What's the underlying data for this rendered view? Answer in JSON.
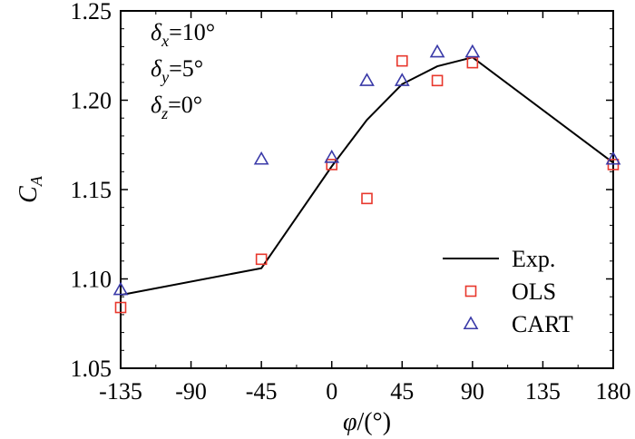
{
  "chart_data": {
    "type": "scatter",
    "xlabel_symbol": "φ",
    "xlabel_unit": "/(°)",
    "ylabel_main": "C",
    "ylabel_sub": "A",
    "xlim": [
      -135,
      180
    ],
    "ylim": [
      1.05,
      1.25
    ],
    "x_ticks": [
      -135,
      -90,
      -45,
      0,
      45,
      90,
      135,
      180
    ],
    "x_tick_labels": [
      "-135",
      "-90",
      "-45",
      "0",
      "45",
      "90",
      "135",
      "180"
    ],
    "y_ticks": [
      1.05,
      1.1,
      1.15,
      1.2,
      1.25
    ],
    "y_tick_labels": [
      "1.05",
      "1.10",
      "1.15",
      "1.20",
      "1.25"
    ],
    "grid": false,
    "legend_position": "bottom-right",
    "annotations": [
      {
        "symbol": "δ",
        "sub": "x",
        "value": "=10°"
      },
      {
        "symbol": "δ",
        "sub": "y",
        "value": "=5°"
      },
      {
        "symbol": "δ",
        "sub": "z",
        "value": "=0°"
      }
    ],
    "series": [
      {
        "name": "Exp.",
        "kind": "line",
        "color": "#000000",
        "x": [
          -135,
          -45,
          0,
          22.5,
          45,
          67.5,
          90,
          180
        ],
        "y": [
          1.091,
          1.106,
          1.163,
          1.189,
          1.209,
          1.219,
          1.224,
          1.165
        ]
      },
      {
        "name": "OLS",
        "kind": "square",
        "color": "#e8372c",
        "x": [
          -135,
          -45,
          0,
          22.5,
          45,
          67.5,
          90,
          180
        ],
        "y": [
          1.084,
          1.111,
          1.164,
          1.145,
          1.222,
          1.211,
          1.221,
          1.164
        ]
      },
      {
        "name": "CART",
        "kind": "triangle",
        "color": "#3a3aa8",
        "x": [
          -135,
          -45,
          0,
          22.5,
          45,
          67.5,
          90,
          180
        ],
        "y": [
          1.094,
          1.167,
          1.168,
          1.211,
          1.211,
          1.227,
          1.227,
          1.167
        ]
      }
    ]
  }
}
